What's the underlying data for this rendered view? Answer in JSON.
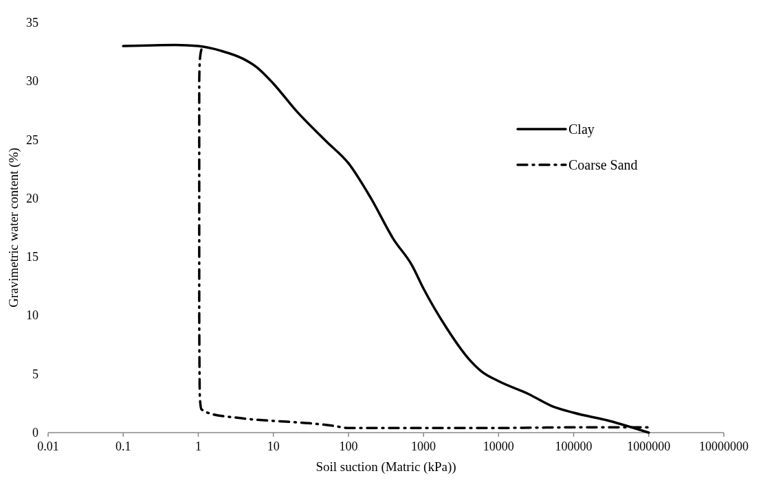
{
  "chart_data": {
    "type": "line",
    "xlabel": "Soil suction (Matric (kPa))",
    "ylabel": "Gravimetric water content (%)",
    "log": "x",
    "xlim": [
      0.01,
      10000000
    ],
    "xticks": [
      0.01,
      0.1,
      1,
      10,
      100,
      1000,
      10000,
      100000,
      1000000,
      10000000
    ],
    "ylim": [
      0,
      35
    ],
    "yticks": [
      0,
      5,
      10,
      15,
      20,
      25,
      30,
      35
    ],
    "grid": false,
    "legend": "right",
    "series": [
      {
        "name": "Clay",
        "color": "#000000",
        "line_style": "solid",
        "x": [
          0.1,
          0.5,
          1,
          2,
          4,
          6,
          10,
          20,
          50,
          100,
          200,
          400,
          700,
          1000,
          2000,
          4000,
          6000,
          10000,
          25000,
          50000,
          100000,
          300000,
          1000000
        ],
        "values": [
          33.0,
          33.1,
          33.0,
          32.6,
          31.9,
          31.2,
          29.8,
          27.5,
          24.9,
          23.0,
          20.0,
          16.5,
          14.3,
          12.3,
          9.0,
          6.3,
          5.2,
          4.4,
          3.3,
          2.3,
          1.7,
          1.0,
          0.0
        ]
      },
      {
        "name": "Coarse Sand",
        "color": "#000000",
        "line_style": "dashdot",
        "x": [
          1.1,
          1.05,
          1.03,
          1.03,
          1.03,
          1.05,
          1.1,
          1.5,
          3,
          6,
          10,
          30,
          60,
          100,
          1000,
          10000,
          100000,
          1000000,
          1100000
        ],
        "values": [
          32.7,
          31.8,
          30,
          20,
          10,
          3,
          2.0,
          1.6,
          1.3,
          1.1,
          1.0,
          0.8,
          0.6,
          0.4,
          0.4,
          0.4,
          0.45,
          0.45,
          0.4
        ]
      }
    ]
  }
}
